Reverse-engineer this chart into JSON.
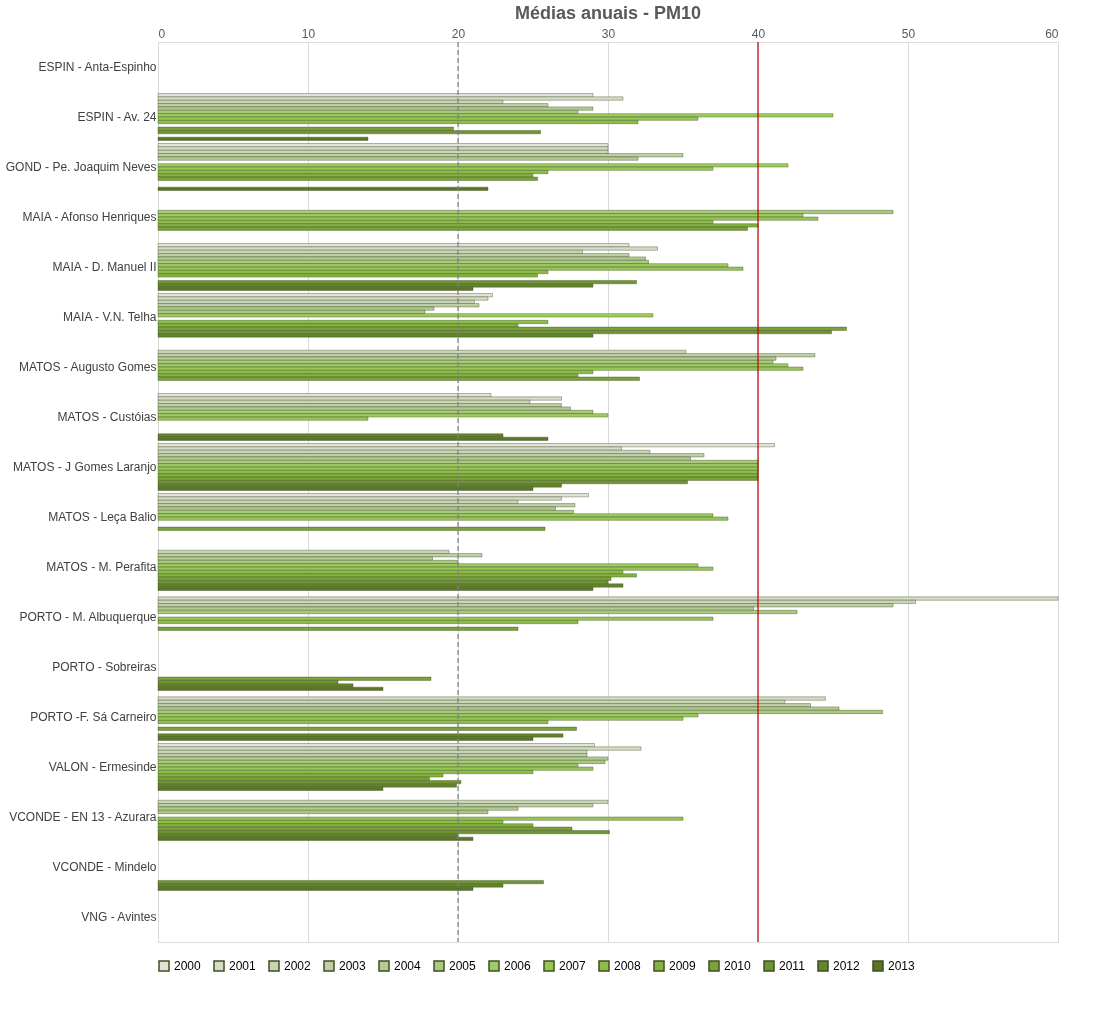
{
  "chart_data": {
    "type": "bar",
    "orientation": "horizontal",
    "title": "Médias anuais - PM10",
    "categories": [
      "ESPIN - Anta-Espinho",
      "ESPIN - Av. 24",
      "GOND - Pe. Joaquim Neves",
      "MAIA - Afonso Henriques",
      "MAIA - D. Manuel II",
      "MAIA - V.N. Telha",
      "MATOS - Augusto Gomes",
      "MATOS - Custóias",
      "MATOS - J Gomes Laranjo",
      "MATOS - Leça Balio",
      "MATOS - M. Perafita",
      "PORTO - M. Albuquerque",
      "PORTO - Sobreiras",
      "PORTO -F. Sá Carneiro",
      "VALON - Ermesinde",
      "VCONDE - EN 13 - Azurara",
      "VCONDE - Mindelo",
      "VNG - Avintes"
    ],
    "series": [
      {
        "name": "2000",
        "color": "#e0e4d8",
        "values": [
          null,
          29,
          30,
          null,
          31.4,
          22.3,
          null,
          22.2,
          41.1,
          28.7,
          null,
          null,
          null,
          null,
          29.1,
          null,
          null,
          null
        ]
      },
      {
        "name": "2001",
        "color": "#d5dcc8",
        "values": [
          null,
          31,
          30,
          null,
          33.3,
          22,
          null,
          26.9,
          30.9,
          26.9,
          null,
          60,
          null,
          44.5,
          32.2,
          null,
          null,
          null
        ]
      },
      {
        "name": "2002",
        "color": "#cad5b8",
        "values": [
          null,
          23,
          30,
          null,
          28.3,
          21.1,
          35.2,
          24.8,
          32.8,
          24,
          19.4,
          50.5,
          null,
          41.8,
          28.6,
          30,
          null,
          null
        ]
      },
      {
        "name": "2003",
        "color": "#bfd0a6",
        "values": [
          null,
          26,
          35,
          null,
          31.4,
          21.4,
          43.8,
          26.9,
          36.4,
          27.8,
          21.6,
          49,
          null,
          43.5,
          28.6,
          29,
          null,
          null
        ]
      },
      {
        "name": "2004",
        "color": "#b3cc92",
        "values": [
          null,
          29,
          32,
          null,
          32.5,
          18.4,
          41.2,
          27.5,
          35.5,
          26.5,
          18.3,
          39.7,
          null,
          45.4,
          30,
          24,
          null,
          null
        ]
      },
      {
        "name": "2005",
        "color": "#a8c97e",
        "values": [
          null,
          28,
          null,
          49,
          32.7,
          17.8,
          41,
          29,
          40,
          27.7,
          20,
          42.6,
          null,
          48.3,
          29.8,
          22,
          null,
          null
        ]
      },
      {
        "name": "2006",
        "color": "#9fcc62",
        "values": [
          null,
          45,
          42,
          43,
          38,
          33,
          42,
          30,
          40,
          37,
          36,
          null,
          null,
          36,
          28,
          null,
          null,
          null
        ]
      },
      {
        "name": "2007",
        "color": "#96c653",
        "values": [
          null,
          36,
          37,
          44,
          39,
          null,
          43,
          14,
          40,
          38,
          37,
          37,
          null,
          35,
          29,
          35,
          null,
          null
        ]
      },
      {
        "name": "2008",
        "color": "#8dbd48",
        "values": [
          null,
          32,
          26,
          37,
          26,
          26,
          29,
          null,
          40,
          null,
          31,
          28,
          null,
          26,
          25,
          23,
          null,
          null
        ]
      },
      {
        "name": "2009",
        "color": "#84b240",
        "values": [
          null,
          null,
          25,
          40,
          25.3,
          24,
          28,
          null,
          40,
          null,
          31.9,
          null,
          null,
          null,
          19,
          25,
          null,
          null
        ]
      },
      {
        "name": "2010",
        "color": "#7aa33a",
        "values": [
          null,
          19.7,
          25.3,
          39.3,
          null,
          45.9,
          32.1,
          null,
          40,
          25.8,
          30.2,
          24,
          18.2,
          27.9,
          18.1,
          27.6,
          null,
          null
        ]
      },
      {
        "name": "2011",
        "color": "#6f9433",
        "values": [
          null,
          25.5,
          null,
          null,
          31.9,
          44.9,
          null,
          null,
          35.3,
          null,
          30,
          null,
          12,
          null,
          20.2,
          30.1,
          25.7,
          null
        ]
      },
      {
        "name": "2012",
        "color": "#64842e",
        "values": [
          null,
          null,
          null,
          null,
          29,
          29,
          null,
          23,
          26.9,
          null,
          31,
          null,
          13,
          27,
          19.9,
          20,
          23,
          null
        ]
      },
      {
        "name": "2013",
        "color": "#587528",
        "values": [
          null,
          14,
          22,
          null,
          21,
          null,
          null,
          26,
          25,
          null,
          29,
          null,
          15,
          25,
          15,
          21,
          21,
          null
        ]
      }
    ],
    "xlim": [
      0,
      60
    ],
    "xticks": [
      0,
      10,
      20,
      30,
      40,
      50,
      60
    ],
    "grid": "x",
    "legend": "bottom",
    "ref_lines": [
      {
        "axis": "x",
        "value": 20,
        "color": "#808080",
        "line_style": "dashed"
      },
      {
        "axis": "x",
        "value": 40,
        "color": "#c00000",
        "line_style": "solid"
      }
    ]
  }
}
